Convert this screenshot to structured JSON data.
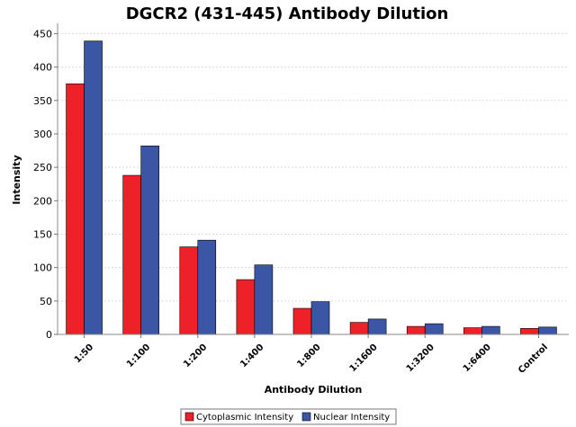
{
  "chart_data": {
    "type": "bar",
    "title": "DGCR2 (431-445) Antibody Dilution",
    "xlabel": "Antibody Dilution",
    "ylabel": "Intensity",
    "categories": [
      "1:50",
      "1:100",
      "1:200",
      "1:400",
      "1:800",
      "1:1600",
      "1:3200",
      "1:6400",
      "Control"
    ],
    "series": [
      {
        "name": "Cytoplasmic Intensity",
        "color": "#ee2028",
        "values": [
          375,
          238,
          131,
          82,
          39,
          18,
          12,
          10,
          9
        ]
      },
      {
        "name": "Nuclear Intensity",
        "color": "#3a56a5",
        "values": [
          439,
          282,
          141,
          104,
          49,
          23,
          16,
          12,
          11
        ]
      }
    ],
    "ylim": [
      0,
      460
    ],
    "yticks": [
      0,
      50,
      100,
      150,
      200,
      250,
      300,
      350,
      400,
      450
    ],
    "grid": true,
    "legend_position": "bottom"
  }
}
